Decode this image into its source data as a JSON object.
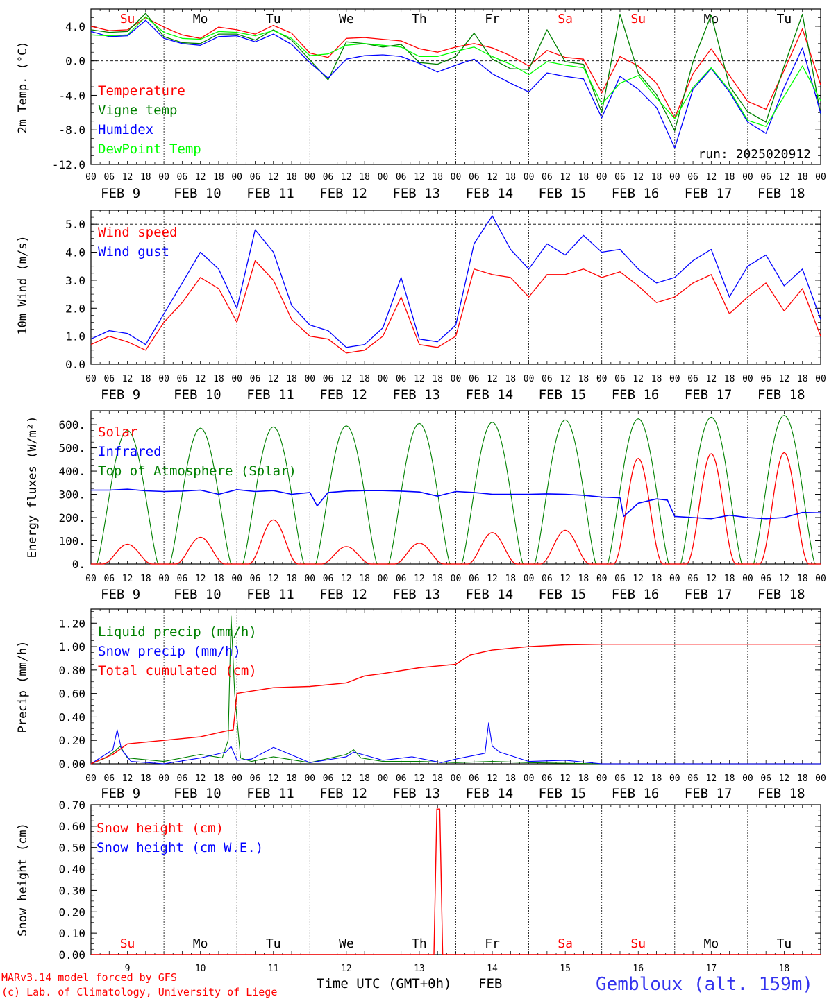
{
  "station": "Gembloux (alt. 159m)",
  "credit_lines": [
    "MARv3.14 model forced by GFS",
    "(c) Lab. of Climatology, University of Liege"
  ],
  "time_axis": {
    "hour_ticks": [
      "00",
      "06",
      "12",
      "18"
    ],
    "date_labels": [
      "FEB  9",
      "FEB 10",
      "FEB 11",
      "FEB 12",
      "FEB 13",
      "FEB 14",
      "FEB 15",
      "FEB 16",
      "FEB 17",
      "FEB 18"
    ],
    "days": [
      "9",
      "10",
      "11",
      "12",
      "13",
      "14",
      "15",
      "16",
      "17",
      "18"
    ],
    "weekdays": [
      "Su",
      "Mo",
      "Tu",
      "We",
      "Th",
      "Fr",
      "Sa",
      "Su",
      "Mo",
      "Tu"
    ],
    "weekend_flags": [
      true,
      false,
      false,
      false,
      false,
      false,
      true,
      true,
      false,
      false
    ],
    "xlabel": "Time UTC (GMT+0h)",
    "month": "FEB"
  },
  "colors": {
    "red": "#ff0000",
    "green": "#008000",
    "blue": "#0000ff",
    "light_green": "#00ff00",
    "station": "#3333ee"
  },
  "chart_data": [
    {
      "type": "line",
      "ylabel": "2m Temp. (°C)",
      "ylim": [
        -12,
        6
      ],
      "y_ticks": [
        "4.0",
        "0.0",
        "-4.0",
        "-8.0",
        "-12.0"
      ],
      "y_tick_values": [
        4,
        0,
        -4,
        -8,
        -12
      ],
      "run_label": "run: 2025020912",
      "x_days": [
        0,
        0.25,
        0.5,
        0.75,
        1,
        1.25,
        1.5,
        1.75,
        2,
        2.25,
        2.5,
        2.75,
        3,
        3.25,
        3.5,
        3.75,
        4,
        4.25,
        4.5,
        4.75,
        5,
        5.25,
        5.5,
        5.75,
        6,
        6.25,
        6.5,
        6.75,
        7,
        7.25,
        7.5,
        7.75,
        8,
        8.25,
        8.5,
        8.75,
        9,
        9.25,
        9.5,
        9.75,
        10
      ],
      "series": [
        {
          "name": "Temperature",
          "color": "red",
          "values": [
            4.0,
            3.5,
            3.6,
            5.0,
            3.9,
            3.0,
            2.6,
            3.9,
            3.6,
            3.1,
            4.1,
            3.2,
            0.9,
            0.4,
            2.6,
            2.7,
            2.5,
            2.3,
            1.4,
            1.0,
            1.6,
            2.0,
            1.5,
            0.6,
            -0.6,
            1.2,
            0.4,
            0.2,
            -3.7,
            0.5,
            -0.6,
            -2.6,
            -6.6,
            -1.5,
            1.4,
            -1.7,
            -4.7,
            -5.6,
            -1.1,
            3.7,
            -2.8
          ]
        },
        {
          "name": "Vigne temp",
          "color": "green",
          "values": [
            3.6,
            3.3,
            3.4,
            5.5,
            2.8,
            2.1,
            2.0,
            3.1,
            3.1,
            2.4,
            3.6,
            2.4,
            0.1,
            -2.2,
            2.2,
            2.0,
            1.6,
            1.9,
            -0.2,
            -0.4,
            0.5,
            3.2,
            0.2,
            -0.9,
            -1.0,
            3.6,
            -0.1,
            -0.4,
            -6.0,
            5.4,
            -1.4,
            -3.9,
            -8.1,
            -0.1,
            5.3,
            -2.9,
            -5.9,
            -7.1,
            -0.6,
            5.4,
            -6.2
          ]
        },
        {
          "name": "Humidex",
          "color": "blue",
          "values": [
            3.4,
            2.8,
            2.9,
            4.7,
            2.6,
            2.0,
            1.8,
            2.8,
            2.9,
            2.2,
            3.1,
            1.9,
            -0.2,
            -2.0,
            0.2,
            0.6,
            0.7,
            0.5,
            -0.3,
            -1.3,
            -0.5,
            0.2,
            -1.5,
            -2.6,
            -3.6,
            -1.4,
            -1.8,
            -2.1,
            -6.6,
            -1.8,
            -3.3,
            -5.4,
            -10.1,
            -3.3,
            -0.9,
            -3.6,
            -7.1,
            -8.4,
            -3.1,
            1.5,
            -6.1
          ]
        },
        {
          "name": "DewPoint Temp",
          "color": "light_green",
          "values": [
            3.0,
            2.9,
            3.0,
            5.1,
            3.3,
            2.6,
            2.5,
            3.4,
            3.3,
            2.9,
            3.5,
            2.6,
            0.6,
            0.8,
            1.8,
            2.0,
            1.8,
            1.6,
            0.5,
            0.5,
            1.1,
            1.6,
            0.5,
            -0.4,
            -1.6,
            -0.1,
            -0.5,
            -0.8,
            -5.0,
            -2.6,
            -1.7,
            -4.3,
            -6.7,
            -3.1,
            -0.8,
            -3.4,
            -6.9,
            -7.6,
            -4.1,
            -0.6,
            -4.6
          ]
        }
      ]
    },
    {
      "type": "line",
      "ylabel": "10m Wind (m/s)",
      "ylim": [
        0,
        5.5
      ],
      "y_ticks": [
        "5.0",
        "4.0",
        "3.0",
        "2.0",
        "1.0",
        "0.0"
      ],
      "y_tick_values": [
        5,
        4,
        3,
        2,
        1,
        0
      ],
      "x_days": [
        0,
        0.25,
        0.5,
        0.75,
        1,
        1.25,
        1.5,
        1.75,
        2,
        2.25,
        2.5,
        2.75,
        3,
        3.25,
        3.5,
        3.75,
        4,
        4.25,
        4.5,
        4.75,
        5,
        5.25,
        5.5,
        5.75,
        6,
        6.25,
        6.5,
        6.75,
        7,
        7.25,
        7.5,
        7.75,
        8,
        8.25,
        8.5,
        8.75,
        9,
        9.25,
        9.5,
        9.75,
        10
      ],
      "series": [
        {
          "name": "Wind speed",
          "color": "red",
          "values": [
            0.7,
            1.0,
            0.8,
            0.5,
            1.5,
            2.2,
            3.1,
            2.7,
            1.5,
            3.7,
            3.0,
            1.6,
            1.0,
            0.9,
            0.4,
            0.5,
            1.0,
            2.4,
            0.7,
            0.6,
            1.0,
            3.4,
            3.2,
            3.1,
            2.4,
            3.2,
            3.2,
            3.4,
            3.1,
            3.3,
            2.8,
            2.2,
            2.4,
            2.9,
            3.2,
            1.8,
            2.4,
            2.9,
            1.9,
            2.7,
            1.0
          ]
        },
        {
          "name": "Wind gust",
          "color": "blue",
          "values": [
            0.9,
            1.2,
            1.1,
            0.7,
            1.8,
            2.9,
            4.0,
            3.4,
            2.0,
            4.8,
            4.0,
            2.1,
            1.4,
            1.2,
            0.6,
            0.7,
            1.3,
            3.1,
            0.9,
            0.8,
            1.4,
            4.3,
            5.3,
            4.1,
            3.4,
            4.3,
            3.9,
            4.6,
            4.0,
            4.1,
            3.4,
            2.9,
            3.1,
            3.7,
            4.1,
            2.4,
            3.5,
            3.9,
            2.8,
            3.4,
            1.6
          ]
        }
      ]
    },
    {
      "type": "line",
      "ylabel": "Energy fluxes (W/m²)",
      "ylim": [
        0,
        660
      ],
      "y_ticks": [
        "600.",
        "500.",
        "400.",
        "300.",
        "200.",
        "100.",
        "0."
      ],
      "y_tick_values": [
        600,
        500,
        400,
        300,
        200,
        100,
        0
      ],
      "solar_peaks": [
        85,
        115,
        190,
        75,
        90,
        135,
        145,
        455,
        475,
        480
      ],
      "toa_peaks": [
        575,
        585,
        590,
        595,
        605,
        610,
        620,
        625,
        632,
        640
      ],
      "infrared": {
        "x_days": [
          0,
          0.25,
          0.5,
          0.75,
          1,
          1.25,
          1.5,
          1.75,
          2,
          2.25,
          2.5,
          2.75,
          3,
          3.1,
          3.25,
          3.5,
          3.75,
          4,
          4.25,
          4.5,
          4.75,
          5,
          5.25,
          5.5,
          5.75,
          6,
          6.25,
          6.5,
          6.75,
          7,
          7.25,
          7.3,
          7.5,
          7.75,
          7.9,
          8,
          8.25,
          8.5,
          8.75,
          9,
          9.25,
          9.5,
          9.75,
          10
        ],
        "values": [
          318,
          318,
          322,
          315,
          312,
          314,
          318,
          300,
          320,
          312,
          316,
          300,
          308,
          250,
          308,
          314,
          316,
          316,
          314,
          310,
          292,
          312,
          308,
          300,
          300,
          300,
          302,
          300,
          296,
          288,
          285,
          205,
          262,
          280,
          275,
          205,
          200,
          195,
          210,
          200,
          195,
          200,
          222,
          220
        ]
      },
      "series": [
        {
          "name": "Solar",
          "color": "red"
        },
        {
          "name": "Infrared",
          "color": "blue"
        },
        {
          "name": "Top of Atmosphere (Solar)",
          "color": "green"
        }
      ]
    },
    {
      "type": "line",
      "ylabel": "Precip (mm/h)",
      "ylim": [
        0,
        1.32
      ],
      "y_ticks": [
        "1.20",
        "1.00",
        "0.80",
        "0.60",
        "0.40",
        "0.20",
        "0.00"
      ],
      "y_tick_values": [
        1.2,
        1.0,
        0.8,
        0.6,
        0.4,
        0.2,
        0
      ],
      "cumulated": {
        "x_days": [
          0,
          0.3,
          0.5,
          1,
          1.5,
          1.85,
          1.95,
          2.0,
          2.5,
          3.0,
          3.5,
          3.75,
          4.0,
          4.5,
          5.0,
          5.2,
          5.5,
          6.0,
          6.5,
          7.0,
          8.0,
          10.0
        ],
        "values": [
          0,
          0.08,
          0.17,
          0.2,
          0.23,
          0.28,
          0.29,
          0.6,
          0.65,
          0.66,
          0.69,
          0.75,
          0.77,
          0.82,
          0.85,
          0.93,
          0.97,
          1.0,
          1.015,
          1.02,
          1.02,
          1.02
        ]
      },
      "liquid": {
        "x_days": [
          0,
          0.2,
          0.35,
          0.4,
          0.5,
          1.0,
          1.5,
          1.8,
          1.88,
          1.92,
          1.97,
          2.05,
          2.2,
          2.5,
          3.0,
          3.5,
          3.6,
          3.7,
          4.0,
          4.5,
          5.0,
          5.5,
          6.0,
          7.0,
          10.0
        ],
        "values": [
          0,
          0.05,
          0.12,
          0.15,
          0.05,
          0.02,
          0.08,
          0.05,
          0.2,
          1.26,
          0.6,
          0.05,
          0.02,
          0.06,
          0.01,
          0.08,
          0.12,
          0.05,
          0.02,
          0.02,
          0.01,
          0.02,
          0.01,
          0.0,
          0.0
        ]
      },
      "snow": {
        "x_days": [
          0,
          0.2,
          0.3,
          0.36,
          0.42,
          0.55,
          1.0,
          1.5,
          1.85,
          1.92,
          2.0,
          2.2,
          2.5,
          3.0,
          3.5,
          3.6,
          4.0,
          4.4,
          4.8,
          5.0,
          5.4,
          5.45,
          5.5,
          5.6,
          6.0,
          6.5,
          7.0,
          10.0
        ],
        "values": [
          0,
          0.08,
          0.12,
          0.29,
          0.12,
          0.02,
          0.0,
          0.05,
          0.1,
          0.15,
          0.03,
          0.04,
          0.14,
          0.01,
          0.06,
          0.1,
          0.03,
          0.06,
          0.01,
          0.04,
          0.09,
          0.35,
          0.15,
          0.1,
          0.02,
          0.03,
          0.0,
          0.0
        ]
      },
      "series": [
        {
          "name": "Liquid precip (mm/h)",
          "color": "green"
        },
        {
          "name": "Snow precip (mm/h)",
          "color": "blue"
        },
        {
          "name": "Total cumulated (cm)",
          "color": "red"
        }
      ]
    },
    {
      "type": "line",
      "ylabel": "Snow height (cm)",
      "ylim": [
        0,
        0.7
      ],
      "y_ticks": [
        "0.70",
        "0.60",
        "0.50",
        "0.40",
        "0.30",
        "0.20",
        "0.10",
        "0.00"
      ],
      "y_tick_values": [
        0.7,
        0.6,
        0.5,
        0.4,
        0.3,
        0.2,
        0.1,
        0
      ],
      "snow_height": {
        "x_days": [
          0,
          4.7,
          4.74,
          4.78,
          4.82,
          10.0
        ],
        "values": [
          0,
          0,
          0.68,
          0.68,
          0,
          0
        ]
      },
      "series": [
        {
          "name": "Snow height (cm)",
          "color": "red"
        },
        {
          "name": "Snow height (cm W.E.)",
          "color": "blue"
        }
      ]
    }
  ]
}
